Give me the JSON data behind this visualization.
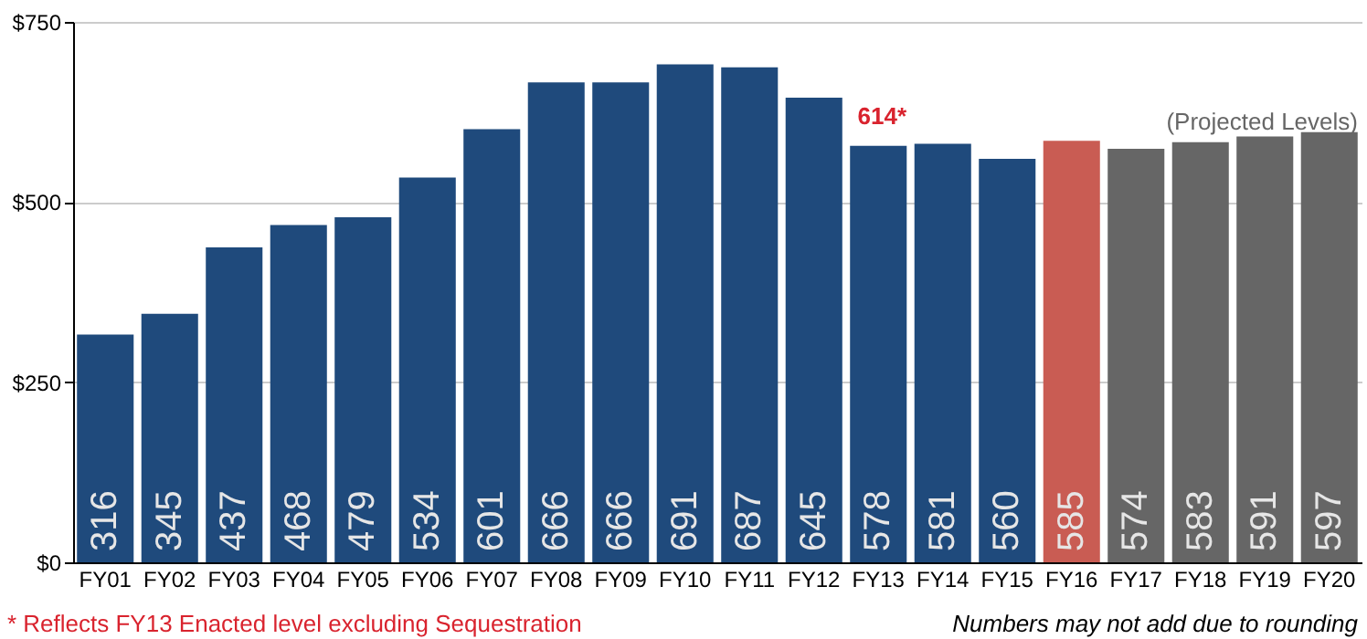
{
  "chart_data": {
    "type": "bar",
    "categories": [
      "FY01",
      "FY02",
      "FY03",
      "FY04",
      "FY05",
      "FY06",
      "FY07",
      "FY08",
      "FY09",
      "FY10",
      "FY11",
      "FY12",
      "FY13",
      "FY14",
      "FY15",
      "FY16",
      "FY17",
      "FY18",
      "FY19",
      "FY20"
    ],
    "values": [
      316,
      345,
      437,
      468,
      479,
      534,
      601,
      666,
      666,
      691,
      687,
      645,
      578,
      581,
      560,
      585,
      574,
      583,
      591,
      597
    ],
    "colors": [
      "#1f4a7c",
      "#1f4a7c",
      "#1f4a7c",
      "#1f4a7c",
      "#1f4a7c",
      "#1f4a7c",
      "#1f4a7c",
      "#1f4a7c",
      "#1f4a7c",
      "#1f4a7c",
      "#1f4a7c",
      "#1f4a7c",
      "#1f4a7c",
      "#1f4a7c",
      "#1f4a7c",
      "#c95c53",
      "#666666",
      "#666666",
      "#666666",
      "#666666"
    ],
    "data_labels": true,
    "ylim": [
      0,
      750
    ],
    "yticks": [
      {
        "value": 0,
        "label": "$0"
      },
      {
        "value": 250,
        "label": "$250"
      },
      {
        "value": 500,
        "label": "$500"
      },
      {
        "value": 750,
        "label": "$750"
      }
    ],
    "grid": "y",
    "annotations": [
      "614*",
      "(Projected Levels)",
      "* Reflects FY13 Enacted level excluding Sequestration",
      "Numbers may not add due to rounding"
    ]
  }
}
